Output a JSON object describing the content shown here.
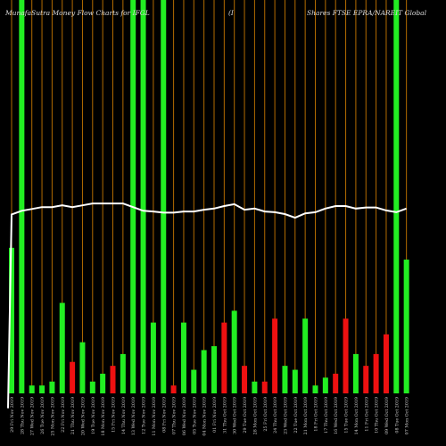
{
  "header": {
    "left_text": "MunafaSutra  Money Flow  Charts for IFGL",
    "middle_text": "(I",
    "right_text": "Shares FTSE EPRA/NAREIT Global"
  },
  "colors": {
    "background": "#000000",
    "up_bar": "#22ee22",
    "down_bar": "#ee1111",
    "price_line": "#ffffff",
    "grid": "#b36b00",
    "label": "#cccccc"
  },
  "chart_data": {
    "type": "bar",
    "title": "",
    "xlabel": "",
    "ylabel": "",
    "ylim": [
      0,
      100
    ],
    "price_ylim": [
      0,
      100
    ],
    "dates": [
      "29 Fri Nov 2019",
      "28 Thu Nov 2019",
      "27 Wed Nov 2019",
      "26 Tue Nov 2019",
      "25 Mon Nov 2019",
      "22 Fri Nov 2019",
      "21 Thu Nov 2019",
      "20 Wed Nov 2019",
      "19 Tue Nov 2019",
      "18 Mon Nov 2019",
      "15 Fri Nov 2019",
      "14 Thu Nov 2019",
      "13 Wed Nov 2019",
      "12 Tue Nov 2019",
      "11 Mon Nov 2019",
      "08 Fri Nov 2019",
      "07 Thu Nov 2019",
      "06 Wed Nov 2019",
      "05 Tue Nov 2019",
      "04 Mon Nov 2019",
      "01 Fri Nov 2019",
      "31 Thu Oct 2019",
      "30 Wed Oct 2019",
      "29 Tue Oct 2019",
      "28 Mon Oct 2019",
      "25 Fri Oct 2019",
      "24 Thu Oct 2019",
      "23 Wed Oct 2019",
      "22 Tue Oct 2019",
      "21 Mon Oct 2019",
      "18 Fri Oct 2019",
      "17 Thu Oct 2019",
      "16 Wed Oct 2019",
      "15 Tue Oct 2019",
      "14 Mon Oct 2019",
      "11 Fri Oct 2019",
      "10 Thu Oct 2019",
      "09 Wed Oct 2019",
      "08 Tue Oct 2019",
      "07 Mon Oct 2019"
    ],
    "x_labels": [
      "29 Fri Nov 2019",
      "28 Thu Nov 2019",
      "27 Wed Nov 2019",
      "26 Tue Nov 2019",
      "25 Mon Nov 2019",
      "22 Fri Nov 2019",
      "21 Thu Nov 2019",
      "20 Wed Nov 2019",
      "19 Tue Nov 2019",
      "18 Mon Nov 2019",
      "15 Fri Nov 2019",
      "14 Thu Nov 2019",
      "13 Wed Nov 2019",
      "12 Tue Nov 2019",
      "11 Mon Nov 2019",
      "08 Fri Nov 2019",
      "07 Thu Nov 2019",
      "06 Wed Nov 2019",
      "05 Tue Nov 2019",
      "04 Mon Nov 2019",
      "01 Fri Nov 2019",
      "31 Thu Oct 2019",
      "30 Wed Oct 2019",
      "29 Tue Oct 2019",
      "28 Mon Oct 2019",
      "25 Fri Oct 2019",
      "24 Thu Oct 2019",
      "23 Wed Oct 2019",
      "22 Tue Oct 2019",
      "21 Mon Oct 2019",
      "18 Fri Oct 2019",
      "17 Thu Oct 2019",
      "16 Wed Oct 2019",
      "15 Tue Oct 2019",
      "14 Mon Oct 2019",
      "11 Fri Oct 2019",
      "10 Thu Oct 2019",
      "09 Wed Oct 2019",
      "08 Tue Oct 2019",
      "07 Mon Oct 2019"
    ],
    "volume_values": [
      37,
      100,
      2,
      2,
      3,
      23,
      8,
      13,
      3,
      5,
      7,
      10,
      100,
      100,
      18,
      100,
      2,
      18,
      6,
      11,
      12,
      18,
      21,
      7,
      3,
      3,
      19,
      7,
      6,
      19,
      2,
      4,
      5,
      19,
      10,
      7,
      10,
      15,
      100,
      34
    ],
    "volume_directions": [
      "up",
      "up",
      "up",
      "up",
      "up",
      "up",
      "down",
      "up",
      "up",
      "up",
      "down",
      "up",
      "up",
      "up",
      "up",
      "up",
      "down",
      "up",
      "up",
      "up",
      "up",
      "down",
      "up",
      "down",
      "up",
      "down",
      "down",
      "up",
      "up",
      "up",
      "up",
      "up",
      "down",
      "down",
      "up",
      "down",
      "down",
      "down",
      "up",
      "up"
    ],
    "price_values": [
      56,
      57,
      57.5,
      58,
      58,
      58.5,
      58,
      58.5,
      59,
      59,
      59,
      59,
      58,
      57,
      56.8,
      56.5,
      56.5,
      56.8,
      56.8,
      57.3,
      57.6,
      58.3,
      58.8,
      57.3,
      57.6,
      56.8,
      56.6,
      56.1,
      55.1,
      56.3,
      56.6,
      57.6,
      58.3,
      58.3,
      57.6,
      57.9,
      57.9,
      57.1,
      56.6,
      57.6
    ],
    "price_line_start": 3
  }
}
